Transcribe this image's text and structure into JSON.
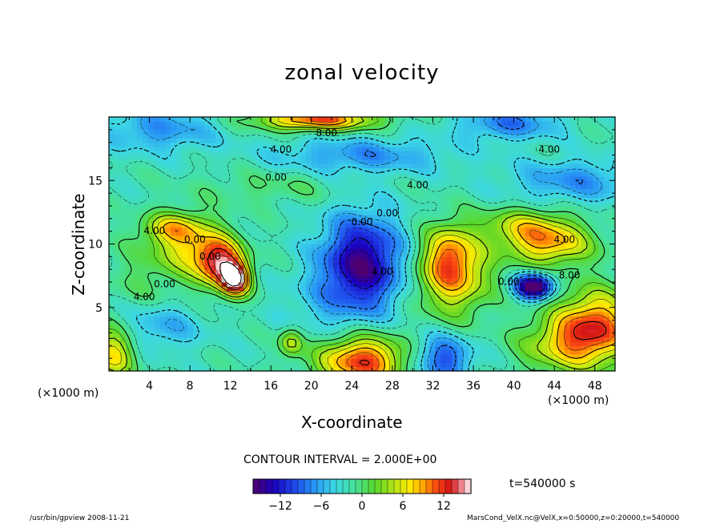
{
  "chart_data": {
    "type": "heatmap",
    "title": "zonal velocity",
    "xlabel": "X-coordinate",
    "ylabel": "Z-coordinate",
    "x_units": "(×1000 m)",
    "y_units": "(×1000 m)",
    "xlim": [
      0,
      50
    ],
    "ylim": [
      0,
      20
    ],
    "x_ticks": [
      4,
      8,
      12,
      16,
      20,
      24,
      28,
      32,
      36,
      40,
      44,
      48
    ],
    "y_ticks": [
      5,
      10,
      15
    ],
    "contour_interval_text": "CONTOUR INTERVAL = 2.000E+00",
    "time_text": "t=540000 s",
    "colorbar": {
      "range": [
        -16,
        16
      ],
      "tick_values": [
        -12,
        -6,
        0,
        6,
        12
      ],
      "tick_labels": [
        "−12",
        "−6",
        "0",
        "6",
        "12"
      ]
    },
    "contour_labels": [
      {
        "text": "8.00",
        "x": 21.5,
        "z": 18.7
      },
      {
        "text": "4.00",
        "x": 17.0,
        "z": 17.4
      },
      {
        "text": "4.00",
        "x": 43.5,
        "z": 17.4
      },
      {
        "text": "0.00",
        "x": 16.5,
        "z": 15.2
      },
      {
        "text": "4.00",
        "x": 30.5,
        "z": 14.6
      },
      {
        "text": "0.00",
        "x": 27.5,
        "z": 12.4
      },
      {
        "text": "0.00",
        "x": 25.0,
        "z": 11.7
      },
      {
        "text": "4.00",
        "x": 4.5,
        "z": 11.0
      },
      {
        "text": "0.00",
        "x": 8.5,
        "z": 10.3
      },
      {
        "text": "0.00",
        "x": 10.0,
        "z": 9.0
      },
      {
        "text": "4.00",
        "x": 27.0,
        "z": 7.8
      },
      {
        "text": "4.00",
        "x": 45.0,
        "z": 10.3
      },
      {
        "text": "0.00",
        "x": 39.5,
        "z": 7.0
      },
      {
        "text": "8.00",
        "x": 45.5,
        "z": 7.5
      },
      {
        "text": "0.00",
        "x": 5.5,
        "z": 6.8
      },
      {
        "text": "4.00",
        "x": 3.5,
        "z": 5.8
      }
    ],
    "features": [
      {
        "x": 8,
        "z": 10,
        "value": 8,
        "sx": 2.5,
        "sz": 1.6
      },
      {
        "x": 11,
        "z": 8.5,
        "value": 14,
        "sx": 1.6,
        "sz": 1.3
      },
      {
        "x": 12.5,
        "z": 7.2,
        "value": 16,
        "sx": 1.0,
        "sz": 0.9
      },
      {
        "x": 6,
        "z": 11.3,
        "value": 6,
        "sx": 2.0,
        "sz": 0.8
      },
      {
        "x": 3.5,
        "z": 7.5,
        "value": 2,
        "sx": 3.0,
        "sz": 2.0
      },
      {
        "x": 25,
        "z": 8.5,
        "value": -13,
        "sx": 2.8,
        "sz": 2.6
      },
      {
        "x": 34,
        "z": 7.7,
        "value": 11,
        "sx": 2.5,
        "sz": 2.2
      },
      {
        "x": 33.5,
        "z": 9.5,
        "value": 5,
        "sx": 1.5,
        "sz": 1.5
      },
      {
        "x": 43.5,
        "z": 10.0,
        "value": 10,
        "sx": 3.0,
        "sz": 1.2
      },
      {
        "x": 41,
        "z": 11.5,
        "value": 6,
        "sx": 3.0,
        "sz": 1.0
      },
      {
        "x": 42,
        "z": 6.7,
        "value": -16,
        "sx": 1.3,
        "sz": 0.7
      },
      {
        "x": 48,
        "z": 3.5,
        "value": 13,
        "sx": 2.8,
        "sz": 2.0
      },
      {
        "x": 44.5,
        "z": 2.0,
        "value": 6,
        "sx": 3.0,
        "sz": 1.5
      },
      {
        "x": 25,
        "z": 0.8,
        "value": 14,
        "sx": 3.0,
        "sz": 1.4
      },
      {
        "x": 33,
        "z": 1.0,
        "value": -8,
        "sx": 2.0,
        "sz": 1.3
      },
      {
        "x": 0.5,
        "z": 1.5,
        "value": 9,
        "sx": 1.5,
        "sz": 1.5
      },
      {
        "x": 18,
        "z": 2.3,
        "value": 7,
        "sx": 0.8,
        "sz": 0.8
      },
      {
        "x": 20.5,
        "z": 19.8,
        "value": 13,
        "sx": 4.0,
        "sz": 0.6
      },
      {
        "x": 39.5,
        "z": 19.5,
        "value": -6,
        "sx": 3.5,
        "sz": 0.9
      },
      {
        "x": 5,
        "z": 19.0,
        "value": -5,
        "sx": 4.0,
        "sz": 1.2
      },
      {
        "x": 25,
        "z": 17.0,
        "value": -5,
        "sx": 6.0,
        "sz": 1.0
      },
      {
        "x": 46,
        "z": 15.0,
        "value": -5,
        "sx": 4.5,
        "sz": 1.2
      },
      {
        "x": 16,
        "z": 14.5,
        "value": 2,
        "sx": 5.0,
        "sz": 0.9
      },
      {
        "x": 5,
        "z": 3.5,
        "value": -4,
        "sx": 3.0,
        "sz": 1.3
      },
      {
        "x": 21,
        "z": 5.0,
        "value": -2,
        "sx": 3.0,
        "sz": 2.0
      }
    ],
    "background_value": -2
  },
  "footer": {
    "left": "/usr/bin/gpview   2008-11-21",
    "right": "MarsCond_VelX.nc@VelX,x=0:50000,z=0:20000,t=540000"
  }
}
